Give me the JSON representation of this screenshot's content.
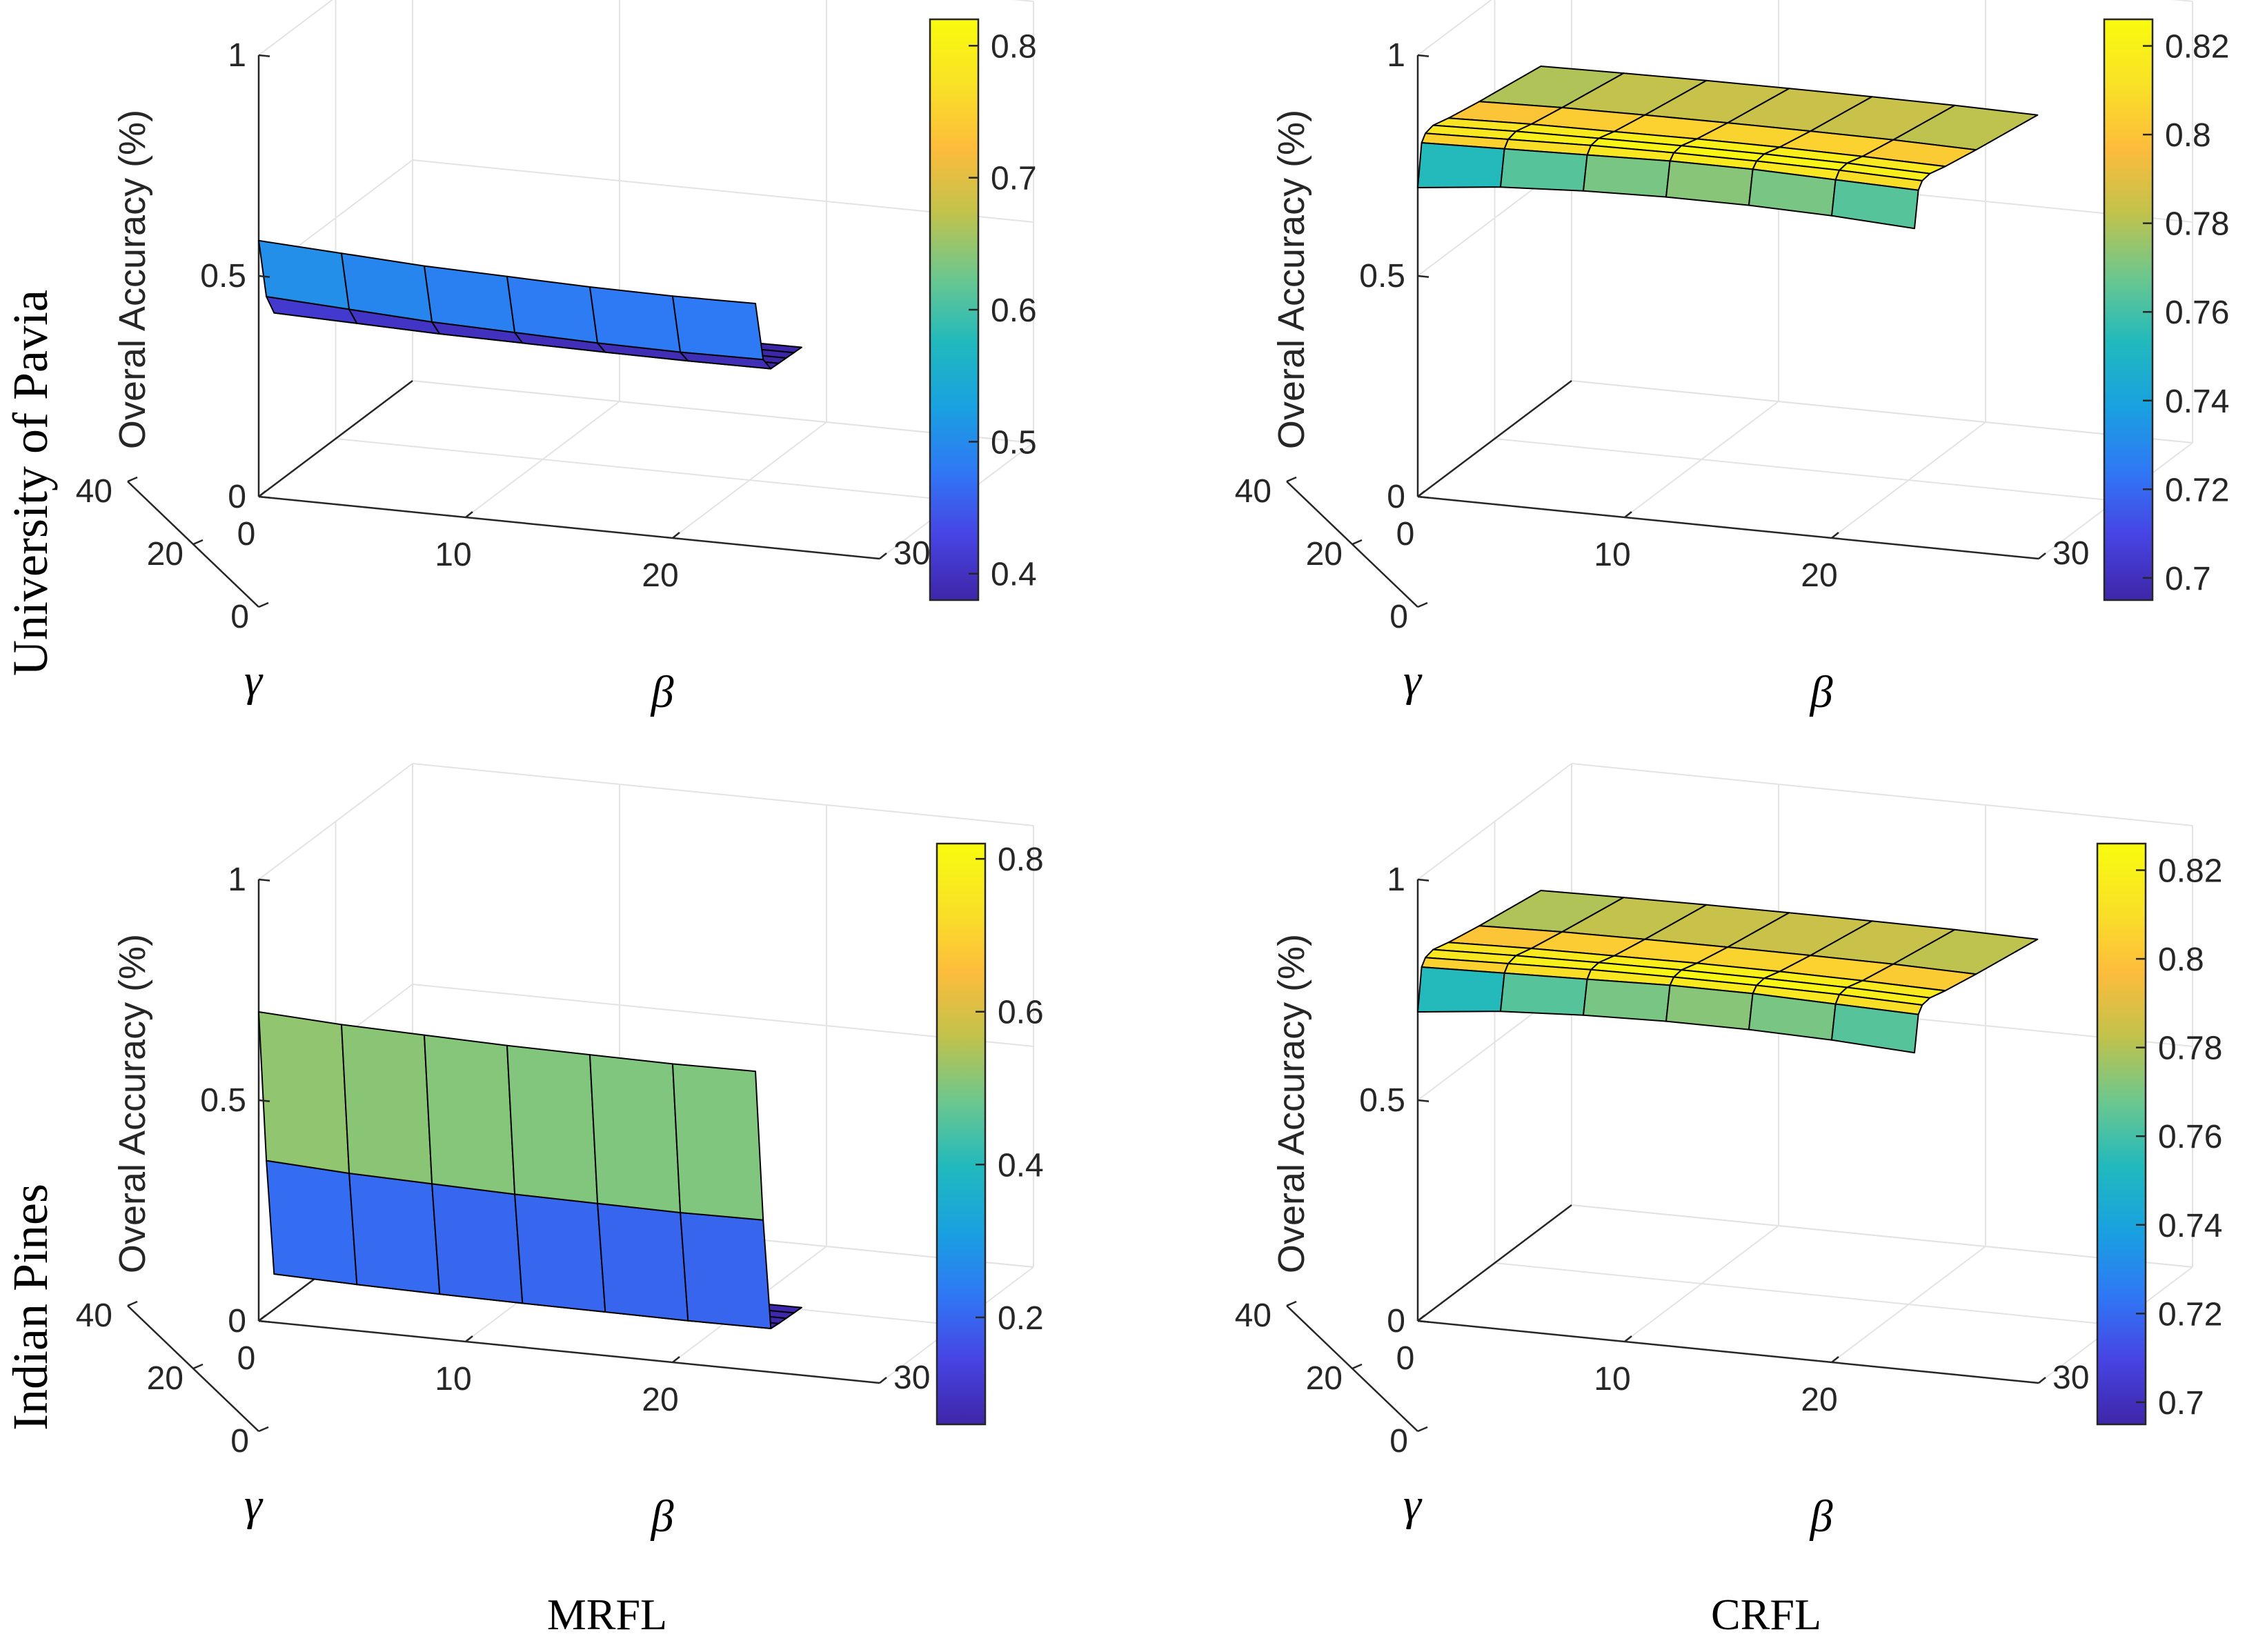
{
  "figure": {
    "row_labels": [
      "University of Pavia",
      "Indian Pines"
    ],
    "column_labels": [
      "MRFL",
      "CRFL"
    ],
    "colormap": [
      "#3e26a8",
      "#4744e3",
      "#2f78f5",
      "#19a1e0",
      "#21b9bd",
      "#6cc78e",
      "#c1c24c",
      "#fdbc3c",
      "#f9e226",
      "#f9fb0e"
    ]
  },
  "chart_data": [
    {
      "type": "surface",
      "method": "MRFL",
      "dataset": "University of Pavia",
      "zlabel": "Overal Accuracy (%)",
      "xlabel": "β",
      "ylabel": "γ",
      "zlim": [
        0,
        1
      ],
      "z_ticks": [
        "0",
        "0.5",
        "1"
      ],
      "beta_ticks": [
        "0",
        "10",
        "20",
        "30"
      ],
      "gamma_ticks": [
        "0",
        "20",
        "40"
      ],
      "colorbar_ticks": [
        "0.4",
        "0.5",
        "0.6",
        "0.7",
        "0.8"
      ],
      "colorbar_range": [
        0.38,
        0.82
      ],
      "beta": [
        0,
        4,
        8,
        12,
        16,
        20,
        24
      ],
      "gamma": [
        0,
        2,
        4,
        6,
        8,
        10,
        12
      ],
      "surface": [
        [
          0.58,
          0.57,
          0.56,
          0.555,
          0.55,
          0.548,
          0.55
        ],
        [
          0.44,
          0.43,
          0.42,
          0.415,
          0.41,
          0.408,
          0.41
        ],
        [
          0.39,
          0.385,
          0.38,
          0.378,
          0.376,
          0.375,
          0.376
        ],
        [
          0.386,
          0.382,
          0.379,
          0.377,
          0.375,
          0.374,
          0.375
        ],
        [
          0.385,
          0.381,
          0.378,
          0.376,
          0.374,
          0.373,
          0.374
        ],
        [
          0.384,
          0.38,
          0.377,
          0.375,
          0.373,
          0.372,
          0.373
        ],
        [
          0.383,
          0.379,
          0.376,
          0.374,
          0.372,
          0.371,
          0.372
        ]
      ]
    },
    {
      "type": "surface",
      "method": "CRFL",
      "dataset": "University of Pavia",
      "zlabel": "Overal Accuracy (%)",
      "xlabel": "β",
      "ylabel": "γ",
      "zlim": [
        0,
        1
      ],
      "z_ticks": [
        "0",
        "0.5",
        "1"
      ],
      "beta_ticks": [
        "0",
        "10",
        "20",
        "30"
      ],
      "gamma_ticks": [
        "0",
        "20",
        "40"
      ],
      "colorbar_ticks": [
        "0.7",
        "0.72",
        "0.74",
        "0.76",
        "0.78",
        "0.8",
        "0.82"
      ],
      "colorbar_range": [
        0.695,
        0.826
      ],
      "beta": [
        0,
        4,
        8,
        12,
        16,
        20,
        24
      ],
      "gamma": [
        0,
        1,
        2,
        4,
        8,
        16,
        32
      ],
      "surface": [
        [
          0.7,
          0.72,
          0.73,
          0.735,
          0.735,
          0.73,
          0.72
        ],
        [
          0.795,
          0.8,
          0.805,
          0.81,
          0.81,
          0.805,
          0.8
        ],
        [
          0.81,
          0.815,
          0.82,
          0.822,
          0.822,
          0.82,
          0.815
        ],
        [
          0.815,
          0.82,
          0.823,
          0.825,
          0.825,
          0.823,
          0.818
        ],
        [
          0.805,
          0.81,
          0.812,
          0.814,
          0.814,
          0.812,
          0.808
        ],
        [
          0.79,
          0.795,
          0.797,
          0.798,
          0.798,
          0.797,
          0.793
        ],
        [
          0.765,
          0.768,
          0.77,
          0.771,
          0.771,
          0.77,
          0.767
        ]
      ]
    },
    {
      "type": "surface",
      "method": "MRFL",
      "dataset": "Indian Pines",
      "zlabel": "Overal Accuracy (%)",
      "xlabel": "β",
      "ylabel": "γ",
      "zlim": [
        0,
        1
      ],
      "z_ticks": [
        "0",
        "0.5",
        "1"
      ],
      "beta_ticks": [
        "0",
        "10",
        "20",
        "30"
      ],
      "gamma_ticks": [
        "0",
        "20",
        "40"
      ],
      "colorbar_ticks": [
        "0.2",
        "0.4",
        "0.6",
        "0.8"
      ],
      "colorbar_range": [
        0.06,
        0.82
      ],
      "beta": [
        0,
        4,
        8,
        12,
        16,
        20,
        24
      ],
      "gamma": [
        0,
        2,
        4,
        6,
        8,
        10,
        12
      ],
      "surface": [
        [
          0.7,
          0.69,
          0.685,
          0.68,
          0.678,
          0.676,
          0.678
        ],
        [
          0.35,
          0.34,
          0.335,
          0.33,
          0.328,
          0.326,
          0.328
        ],
        [
          0.08,
          0.075,
          0.072,
          0.07,
          0.069,
          0.068,
          0.069
        ],
        [
          0.075,
          0.072,
          0.07,
          0.068,
          0.067,
          0.066,
          0.067
        ],
        [
          0.074,
          0.071,
          0.069,
          0.067,
          0.066,
          0.065,
          0.066
        ],
        [
          0.073,
          0.07,
          0.068,
          0.066,
          0.065,
          0.064,
          0.065
        ],
        [
          0.072,
          0.069,
          0.067,
          0.065,
          0.064,
          0.063,
          0.064
        ]
      ]
    },
    {
      "type": "surface",
      "method": "CRFL",
      "dataset": "Indian Pines",
      "zlabel": "Overal Accuracy (%)",
      "xlabel": "β",
      "ylabel": "γ",
      "zlim": [
        0,
        1
      ],
      "z_ticks": [
        "0",
        "0.5",
        "1"
      ],
      "beta_ticks": [
        "0",
        "10",
        "20",
        "30"
      ],
      "gamma_ticks": [
        "0",
        "20",
        "40"
      ],
      "colorbar_ticks": [
        "0.7",
        "0.72",
        "0.74",
        "0.76",
        "0.78",
        "0.8",
        "0.82"
      ],
      "colorbar_range": [
        0.695,
        0.826
      ],
      "beta": [
        0,
        4,
        8,
        12,
        16,
        20,
        24
      ],
      "gamma": [
        0,
        1,
        2,
        4,
        8,
        16,
        32
      ],
      "surface": [
        [
          0.7,
          0.72,
          0.73,
          0.735,
          0.735,
          0.73,
          0.72
        ],
        [
          0.795,
          0.8,
          0.805,
          0.81,
          0.81,
          0.805,
          0.8
        ],
        [
          0.81,
          0.815,
          0.82,
          0.822,
          0.822,
          0.82,
          0.815
        ],
        [
          0.815,
          0.82,
          0.823,
          0.825,
          0.825,
          0.823,
          0.818
        ],
        [
          0.805,
          0.81,
          0.812,
          0.814,
          0.814,
          0.812,
          0.808
        ],
        [
          0.79,
          0.795,
          0.797,
          0.798,
          0.798,
          0.797,
          0.793
        ],
        [
          0.765,
          0.768,
          0.77,
          0.771,
          0.771,
          0.77,
          0.767
        ]
      ]
    }
  ]
}
